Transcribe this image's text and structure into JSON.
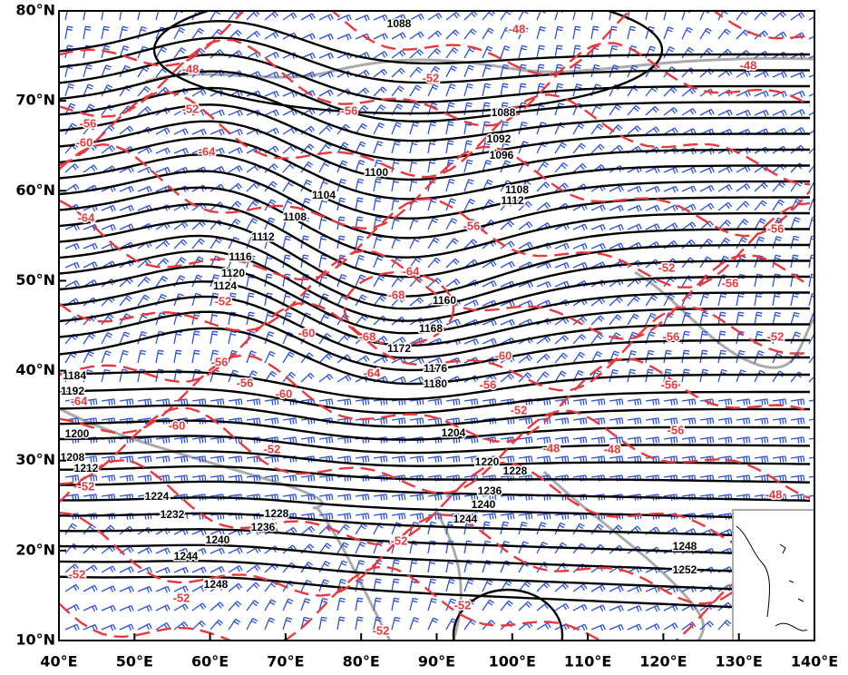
{
  "map": {
    "xlim": [
      40,
      140
    ],
    "ylim": [
      10,
      80
    ],
    "xticks": [
      {
        "value": 40,
        "label": "40°E"
      },
      {
        "value": 50,
        "label": "50°E"
      },
      {
        "value": 60,
        "label": "60°E"
      },
      {
        "value": 70,
        "label": "70°E"
      },
      {
        "value": 80,
        "label": "80°E"
      },
      {
        "value": 90,
        "label": "90°E"
      },
      {
        "value": 100,
        "label": "100°E"
      },
      {
        "value": 110,
        "label": "110°E"
      },
      {
        "value": 120,
        "label": "120°E"
      },
      {
        "value": 130,
        "label": "130°E"
      },
      {
        "value": 140,
        "label": "140°E"
      }
    ],
    "yticks": [
      {
        "value": 10,
        "label": "10°N"
      },
      {
        "value": 20,
        "label": "20°N"
      },
      {
        "value": 30,
        "label": "30°N"
      },
      {
        "value": 40,
        "label": "40°N"
      },
      {
        "value": 50,
        "label": "50°N"
      },
      {
        "value": 60,
        "label": "60°N"
      },
      {
        "value": 70,
        "label": "70°N"
      },
      {
        "value": 80,
        "label": "80°N"
      }
    ],
    "height_contour_labels": [
      1088,
      1088,
      1092,
      1096,
      1100,
      1104,
      1108,
      1108,
      1112,
      1112,
      1116,
      1120,
      1124,
      1172,
      1168,
      1160,
      1176,
      1180,
      1200,
      1204,
      1208,
      1212,
      1224,
      1232,
      1228,
      1236,
      1240,
      1244,
      1248,
      1220,
      1228,
      1236,
      1240,
      1244,
      1248,
      1252,
      1184,
      1192
    ],
    "temperature_contour_labels": [
      -48,
      -48,
      -52,
      -52,
      -56,
      -56,
      -60,
      -64,
      -64,
      -56,
      -64,
      -68,
      -52,
      -56,
      -56,
      -48,
      -60,
      -68,
      -56,
      -56,
      -60,
      -64,
      -60,
      -56,
      -52,
      -56,
      -52,
      -56,
      -56,
      -48,
      -48,
      -60,
      -52,
      -52,
      -64,
      -52,
      -52,
      -52,
      -52,
      -52,
      -48,
      -52
    ]
  }
}
